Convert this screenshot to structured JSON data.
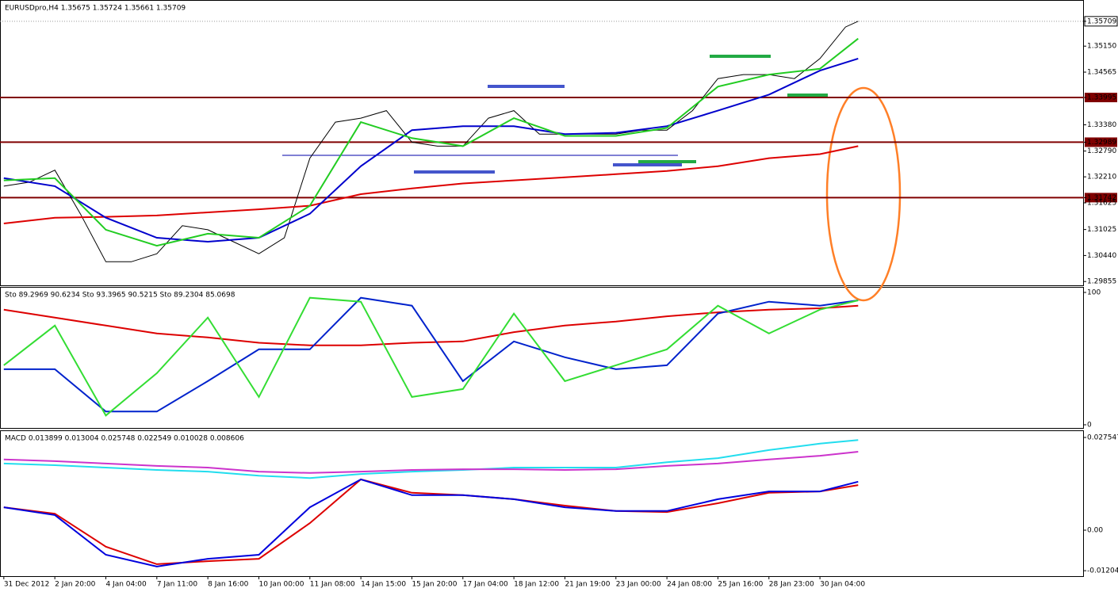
{
  "chart_data": [
    {
      "type": "line",
      "header": "EURUSDpro,H4  1.35675 1.35724 1.35661 1.35709",
      "xlim": [
        -0.6,
        169.4
      ],
      "ylim": [
        1.2977,
        1.3617
      ],
      "yticks": [
        1.35709,
        {
          "value": 1.3515,
          "label": "1.35150"
        },
        1.34565,
        1.33995,
        {
          "value": 1.3338,
          "label": "1.33380"
        },
        1.32989,
        {
          "value": 1.3279,
          "label": "1.32790"
        },
        {
          "value": 1.3221,
          "label": "1.32210"
        },
        1.31742,
        1.31625,
        1.31025,
        {
          "value": 1.3044,
          "label": "1.30440"
        },
        1.29855
      ],
      "highlighted_ticks": [
        3,
        5,
        8
      ],
      "current_tick": 0,
      "series": [
        {
          "color": "#000000",
          "x": [
            0,
            4,
            8,
            12,
            16,
            20,
            24,
            28,
            32,
            36,
            40,
            44,
            48,
            52,
            56,
            60,
            64,
            68,
            72,
            76,
            80,
            84,
            88,
            92,
            96,
            100,
            104,
            108,
            112,
            116,
            120,
            124,
            128,
            132,
            134
          ],
          "values": [
            1.32,
            1.3209,
            1.3236,
            1.3138,
            1.303,
            1.303,
            1.3048,
            1.3111,
            1.3102,
            1.3075,
            1.3048,
            1.3084,
            1.3263,
            1.3344,
            1.3353,
            1.337,
            1.3299,
            1.329,
            1.329,
            1.3353,
            1.337,
            1.3317,
            1.3317,
            1.3317,
            1.3317,
            1.3326,
            1.3326,
            1.337,
            1.3442,
            1.3451,
            1.3451,
            1.3442,
            1.3487,
            1.3558,
            1.3571
          ]
        },
        {
          "color": "#dd0000",
          "x": [
            0,
            8,
            16,
            24,
            32,
            40,
            48,
            56,
            64,
            72,
            80,
            88,
            96,
            104,
            112,
            120,
            128,
            134
          ],
          "values": [
            1.3116,
            1.3129,
            1.3131,
            1.3134,
            1.3141,
            1.3148,
            1.3156,
            1.3182,
            1.3195,
            1.3206,
            1.3213,
            1.322,
            1.3227,
            1.3234,
            1.3245,
            1.3263,
            1.3272,
            1.329
          ]
        },
        {
          "color": "#0000cc",
          "x": [
            0,
            8,
            16,
            24,
            32,
            40,
            48,
            56,
            64,
            72,
            80,
            88,
            96,
            104,
            112,
            120,
            128,
            134
          ],
          "values": [
            1.3218,
            1.32,
            1.3129,
            1.3084,
            1.3075,
            1.3084,
            1.3138,
            1.3245,
            1.3326,
            1.3335,
            1.3335,
            1.3317,
            1.332,
            1.3335,
            1.337,
            1.3406,
            1.346,
            1.3487
          ]
        },
        {
          "color": "#22cc22",
          "x": [
            0,
            8,
            16,
            24,
            32,
            40,
            48,
            56,
            64,
            72,
            80,
            88,
            96,
            104,
            112,
            120,
            128,
            134
          ],
          "values": [
            1.3213,
            1.3218,
            1.3102,
            1.3066,
            1.3093,
            1.3084,
            1.3156,
            1.3344,
            1.3308,
            1.329,
            1.3353,
            1.3313,
            1.3313,
            1.3331,
            1.3424,
            1.3451,
            1.3464,
            1.3532
          ]
        }
      ]
    },
    {
      "type": "line",
      "header": "Sto 89.2969 90.6234  Sto 93.3965 90.5215  Sto 89.2304 85.0698",
      "xlim": [
        -0.6,
        169.4
      ],
      "ylim": [
        -2.4,
        103.6
      ],
      "yticks": [
        100,
        0
      ],
      "series": [
        {
          "color": "#dd0000",
          "x": [
            0,
            8,
            16,
            24,
            32,
            40,
            48,
            56,
            64,
            72,
            80,
            88,
            96,
            104,
            112,
            120,
            128,
            134
          ],
          "values": [
            87,
            81,
            75,
            69,
            66,
            62,
            60,
            60,
            62,
            63,
            70,
            75,
            78,
            82,
            85,
            87,
            88,
            90
          ]
        },
        {
          "color": "#0022cc",
          "x": [
            0,
            8,
            16,
            24,
            32,
            40,
            48,
            56,
            64,
            72,
            80,
            88,
            96,
            104,
            112,
            120,
            128,
            134
          ],
          "values": [
            42,
            42,
            10,
            10,
            33,
            57,
            57,
            96,
            90,
            33,
            63,
            51,
            42,
            45,
            84,
            93,
            90,
            94
          ]
        },
        {
          "color": "#33dd33",
          "x": [
            0,
            8,
            16,
            24,
            32,
            40,
            48,
            56,
            64,
            72,
            80,
            88,
            96,
            104,
            112,
            120,
            128,
            134
          ],
          "values": [
            45,
            75,
            7,
            39,
            81,
            21,
            96,
            93,
            21,
            27,
            84,
            33,
            45,
            57,
            90,
            69,
            87,
            94
          ]
        }
      ]
    },
    {
      "type": "line",
      "header": "MACD 0.013899 0.013004 0.025748 0.022549 0.010028 0.008606",
      "xlim": [
        -0.6,
        169.4
      ],
      "ylim": [
        -0.01366,
        0.02943
      ],
      "yticks": [
        0.027547,
        {
          "value": 0,
          "label": "0.00"
        },
        -0.01204
      ],
      "xticks": [
        {
          "value": 0,
          "label": "31 Dec 2012"
        },
        {
          "value": 8,
          "label": "2 Jan 20:00"
        },
        {
          "value": 16,
          "label": "4 Jan 04:00"
        },
        {
          "value": 24,
          "label": "7 Jan 11:00"
        },
        {
          "value": 32,
          "label": "8 Jan 16:00"
        },
        {
          "value": 40,
          "label": "10 Jan 00:00"
        },
        {
          "value": 48,
          "label": "11 Jan 08:00"
        },
        {
          "value": 56,
          "label": "14 Jan 15:00"
        },
        {
          "value": 64,
          "label": "15 Jan 20:00"
        },
        {
          "value": 72,
          "label": "17 Jan 04:00"
        },
        {
          "value": 80,
          "label": "18 Jan 12:00"
        },
        {
          "value": 88,
          "label": "21 Jan 19:00"
        },
        {
          "value": 96,
          "label": "23 Jan 00:00"
        },
        {
          "value": 104,
          "label": "24 Jan 08:00"
        },
        {
          "value": 112,
          "label": "25 Jan 16:00"
        },
        {
          "value": 120,
          "label": "28 Jan 23:00"
        },
        {
          "value": 128,
          "label": "30 Jan 04:00"
        }
      ],
      "series": [
        {
          "color": "#22ddee",
          "x": [
            0,
            8,
            16,
            24,
            32,
            40,
            48,
            56,
            64,
            72,
            80,
            88,
            96,
            104,
            112,
            120,
            128,
            134
          ],
          "values": [
            0.0198,
            0.0193,
            0.0186,
            0.0179,
            0.0174,
            0.0162,
            0.0155,
            0.0167,
            0.0174,
            0.0179,
            0.0186,
            0.0186,
            0.0186,
            0.0202,
            0.0214,
            0.0238,
            0.0257,
            0.0268
          ]
        },
        {
          "color": "#cc33cc",
          "x": [
            0,
            8,
            16,
            24,
            32,
            40,
            48,
            56,
            64,
            72,
            80,
            88,
            96,
            104,
            112,
            120,
            128,
            134
          ],
          "values": [
            0.021,
            0.0205,
            0.0198,
            0.0191,
            0.0186,
            0.0174,
            0.017,
            0.0174,
            0.0179,
            0.0181,
            0.0181,
            0.0179,
            0.0181,
            0.0191,
            0.0198,
            0.021,
            0.0221,
            0.0233
          ]
        },
        {
          "color": "#dd0000",
          "x": [
            0,
            8,
            16,
            24,
            32,
            40,
            48,
            56,
            64,
            72,
            80,
            88,
            96,
            104,
            112,
            120,
            128,
            134
          ],
          "values": [
            0.0068,
            0.0049,
            -0.0049,
            -0.0101,
            -0.0092,
            -0.0085,
            0.0021,
            0.0151,
            0.0111,
            0.0104,
            0.0092,
            0.0073,
            0.0057,
            0.0054,
            0.008,
            0.0111,
            0.0115,
            0.0134
          ]
        },
        {
          "color": "#0000dd",
          "x": [
            0,
            8,
            16,
            24,
            32,
            40,
            48,
            56,
            64,
            72,
            80,
            88,
            96,
            104,
            112,
            120,
            128,
            134
          ],
          "values": [
            0.0068,
            0.0045,
            -0.0073,
            -0.0108,
            -0.0085,
            -0.0073,
            0.0068,
            0.0151,
            0.0104,
            0.0104,
            0.0092,
            0.0068,
            0.0057,
            0.0057,
            0.0092,
            0.0115,
            0.0115,
            0.0144
          ]
        }
      ]
    }
  ]
}
